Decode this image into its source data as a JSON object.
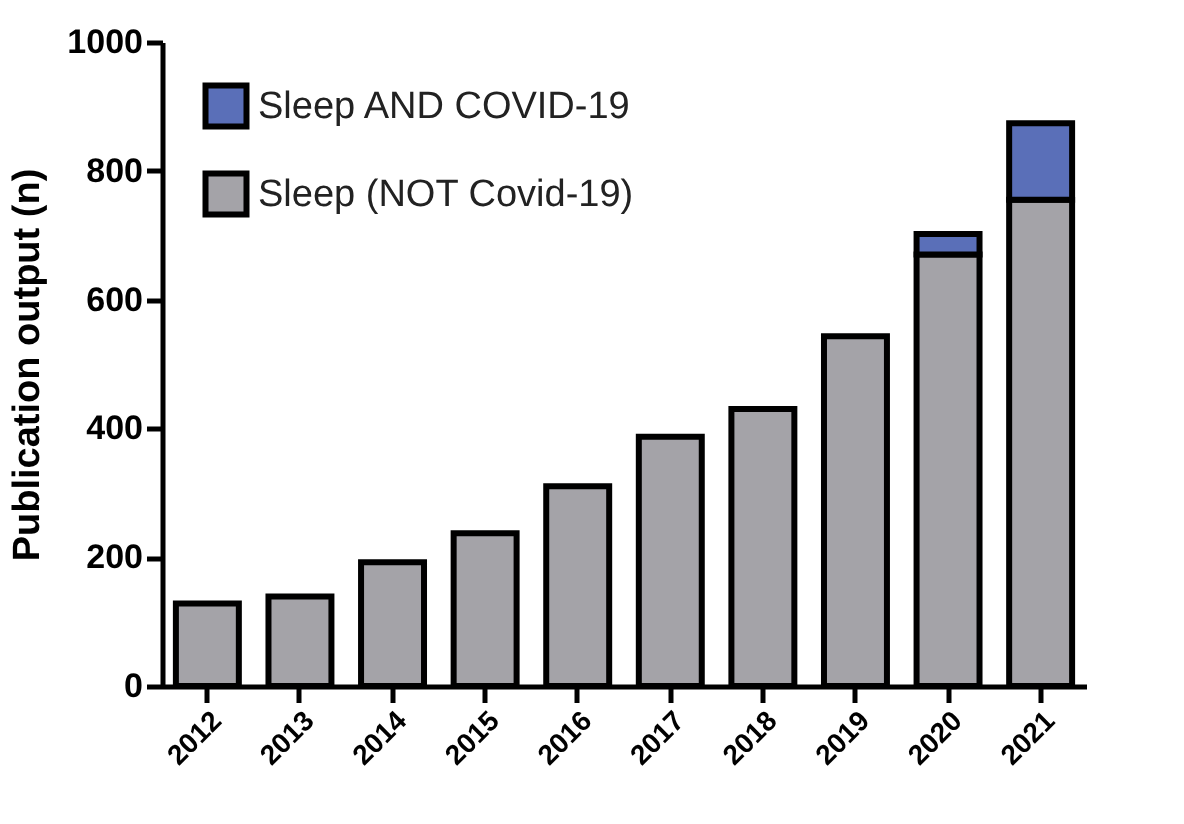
{
  "chart_data": {
    "type": "bar",
    "stacked": true,
    "ylabel": "Publication output (n)",
    "categories": [
      "2012",
      "2013",
      "2014",
      "2015",
      "2016",
      "2017",
      "2018",
      "2019",
      "2020",
      "2021"
    ],
    "series": [
      {
        "name": "Sleep (NOT Covid-19)",
        "color": "#a4a3a8",
        "values": [
          128,
          139,
          192,
          237,
          310,
          387,
          430,
          543,
          670,
          755
        ]
      },
      {
        "name": "Sleep AND COVID-19",
        "color": "#5a6fb8",
        "values": [
          null,
          null,
          null,
          null,
          null,
          null,
          null,
          null,
          32,
          119
        ]
      }
    ],
    "ylim": [
      0,
      1000
    ],
    "yticks": [
      0,
      200,
      400,
      600,
      800,
      1000
    ],
    "grid": false,
    "legend": "top left"
  }
}
